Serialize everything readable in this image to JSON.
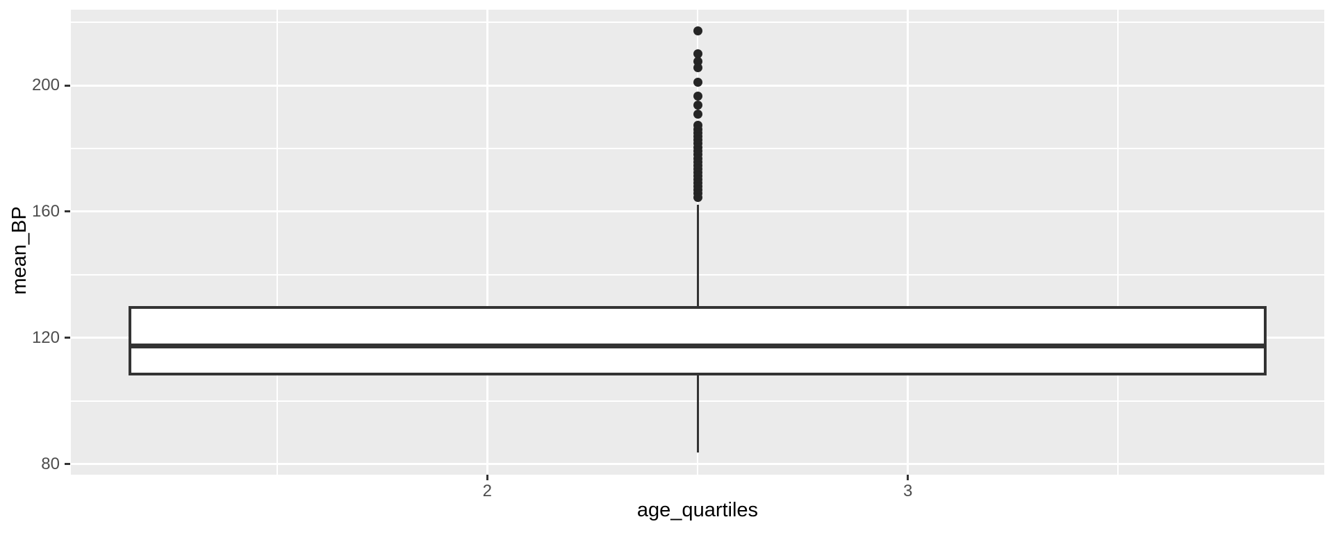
{
  "colors": {
    "panel_background": "#EBEBEB",
    "grid": "#FFFFFF",
    "box_outline": "#333333",
    "box_fill": "#FFFFFF",
    "whisker": "#333333",
    "outlier_point": "#252525",
    "tick_label": "#4D4D4D",
    "axis_title": "#000000",
    "tick_mark": "#333333"
  },
  "chart_data": {
    "type": "boxplot",
    "title": "",
    "xlabel": "age_quartiles",
    "ylabel": "mean_BP",
    "xlim": [
      1.01,
      3.99
    ],
    "ylim": [
      76.6,
      224.0
    ],
    "grid": "on",
    "legend": "none",
    "x_axis": {
      "major_ticks": [
        {
          "value": 2,
          "label": "2"
        },
        {
          "value": 3,
          "label": "3"
        }
      ],
      "minor_ticks": [
        1.5,
        2.5,
        3.5
      ]
    },
    "y_axis": {
      "major_ticks": [
        {
          "value": 80,
          "label": "80"
        },
        {
          "value": 120,
          "label": "120"
        },
        {
          "value": 160,
          "label": "160"
        },
        {
          "value": 200,
          "label": "200"
        }
      ],
      "minor_ticks": [
        100,
        140,
        180,
        220
      ]
    },
    "series": [
      {
        "name": "mean_BP",
        "center_x": 2.5,
        "box_half_width": 1.353,
        "q1": 108.1,
        "median": 117.4,
        "q3": 130.0,
        "whisker_low": 83.6,
        "whisker_high": 162.1,
        "outliers": [
          217.4,
          210.1,
          207.7,
          205.7,
          201.1,
          196.7,
          193.8,
          191.0,
          187.3,
          186.1,
          185.0,
          183.9,
          182.8,
          181.7,
          180.4,
          179.3,
          178.2,
          176.9,
          175.8,
          174.7,
          173.6,
          172.5,
          171.4,
          170.3,
          169.2,
          168.1,
          167.0,
          165.9,
          164.6
        ]
      }
    ]
  }
}
